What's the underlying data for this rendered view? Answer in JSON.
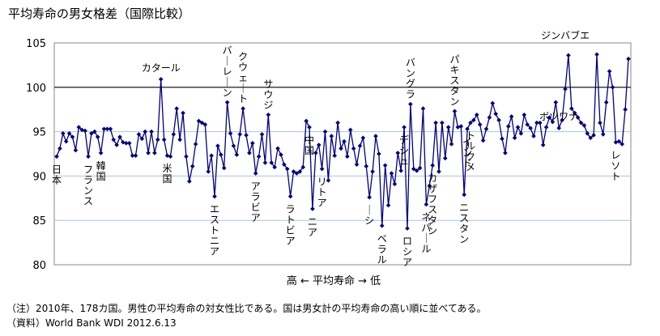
{
  "title": "平均寿命の男女格差（国際比較）",
  "notes": [
    "（注）2010年、178カ国。男性の平均寿命の対女性比である。国は男女計の平均寿命の高い順に並べてある。",
    "（資料）World Bank WDI 2012.6.13"
  ],
  "colors": {
    "series": "#000080",
    "grid": "#a8c4e8",
    "frame": "#888888",
    "reference": "#000000"
  },
  "chart_data": {
    "type": "line",
    "title": "平均寿命の男女格差（国際比較）",
    "xlabel": "高 ← 平均寿命 → 低",
    "ylabel": "",
    "ylim": [
      80,
      105
    ],
    "yticks": [
      80,
      85,
      90,
      95,
      100,
      105
    ],
    "reference_line": 100,
    "series": [
      {
        "name": "",
        "marker": "diamond",
        "values": [
          92.2,
          93.1,
          94.8,
          93.9,
          94.8,
          94.4,
          92.9,
          95.5,
          95.2,
          95.1,
          92.2,
          94.8,
          95.0,
          94.4,
          92.6,
          95.3,
          95.3,
          95.3,
          94.1,
          93.5,
          94.4,
          93.8,
          93.7,
          93.7,
          92.3,
          92.3,
          94.7,
          94.2,
          95.0,
          92.6,
          95.0,
          92.6,
          94.1,
          100.9,
          94.1,
          92.3,
          92.2,
          94.7,
          97.6,
          94.1,
          97.1,
          92.2,
          89.4,
          91.1,
          93.6,
          96.2,
          96.0,
          95.8,
          90.5,
          92.3,
          87.7,
          93.4,
          92.4,
          90.9,
          98.3,
          94.8,
          93.4,
          92.4,
          94.7,
          97.6,
          94.6,
          92.6,
          93.7,
          90.3,
          92.2,
          94.7,
          91.5,
          96.9,
          91.5,
          91.0,
          93.1,
          92.4,
          91.3,
          90.8,
          87.7,
          90.5,
          90.3,
          90.5,
          91.0,
          96.2,
          95.5,
          86.3,
          92.6,
          93.5,
          90.8,
          95.0,
          89.5,
          94.5,
          92.3,
          96.0,
          93.1,
          93.9,
          92.2,
          95.2,
          93.1,
          91.3,
          93.4,
          94.3,
          91.1,
          87.6,
          90.5,
          94.5,
          92.5,
          84.4,
          91.2,
          86.7,
          90.3,
          89.1,
          92.6,
          90.6,
          95.5,
          84.1,
          98.1,
          90.8,
          90.6,
          90.9,
          97.6,
          86.8,
          88.9,
          91.2,
          96.0,
          90.5,
          96.0,
          92.0,
          95.5,
          93.6,
          97.3,
          95.5,
          95.6,
          87.9,
          95.3,
          96.0,
          96.3,
          96.9,
          95.8,
          94.0,
          95.3,
          96.6,
          98.2,
          97.0,
          96.3,
          94.2,
          92.6,
          95.6,
          96.7,
          94.3,
          95.5,
          94.8,
          96.9,
          95.8,
          95.4,
          94.5,
          96.0,
          96.0,
          93.5,
          95.5,
          96.6,
          96.1,
          98.3,
          95.4,
          96.3,
          99.8,
          103.6,
          97.6,
          97.1,
          96.6,
          96.0,
          95.7,
          94.8,
          94.3,
          94.6,
          103.7,
          96.0,
          94.7,
          98.3,
          101.8,
          100.0,
          93.8,
          93.9,
          93.6,
          97.5,
          103.2
        ]
      }
    ],
    "annotations": [
      {
        "index": 0,
        "text": "日本"
      },
      {
        "index": 10,
        "text": "フランス"
      },
      {
        "index": 14,
        "text": "韓国"
      },
      {
        "index": 33,
        "text": "カタール"
      },
      {
        "index": 35,
        "text": "米国"
      },
      {
        "index": 50,
        "text": "エストニア"
      },
      {
        "index": 54,
        "text": "バーレーン"
      },
      {
        "index": 59,
        "text": "クウェート"
      },
      {
        "index": 63,
        "text": "アラビア"
      },
      {
        "index": 67,
        "text": "サウジ"
      },
      {
        "index": 74,
        "text": "ラトビア"
      },
      {
        "index": 80,
        "text": "中国"
      },
      {
        "index": 81,
        "text": "ニア"
      },
      {
        "index": 84,
        "text": "リトア"
      },
      {
        "index": 99,
        "text": "ーシ"
      },
      {
        "index": 103,
        "text": "ベラル"
      },
      {
        "index": 110,
        "text": "デシュ"
      },
      {
        "index": 111,
        "text": "ロシア"
      },
      {
        "index": 112,
        "text": "バングラ"
      },
      {
        "index": 117,
        "text": "ネパール"
      },
      {
        "index": 119,
        "text": "カザフスタン"
      },
      {
        "index": 126,
        "text": "パキスタン"
      },
      {
        "index": 129,
        "text": "ニスタン"
      },
      {
        "index": 130,
        "text": "インド"
      },
      {
        "index": 131,
        "text": "トルクメ"
      },
      {
        "index": 159,
        "text": "ボツワナ"
      },
      {
        "index": 160,
        "text": "ジンバブエ"
      },
      {
        "index": 177,
        "text": "レソト"
      }
    ]
  }
}
